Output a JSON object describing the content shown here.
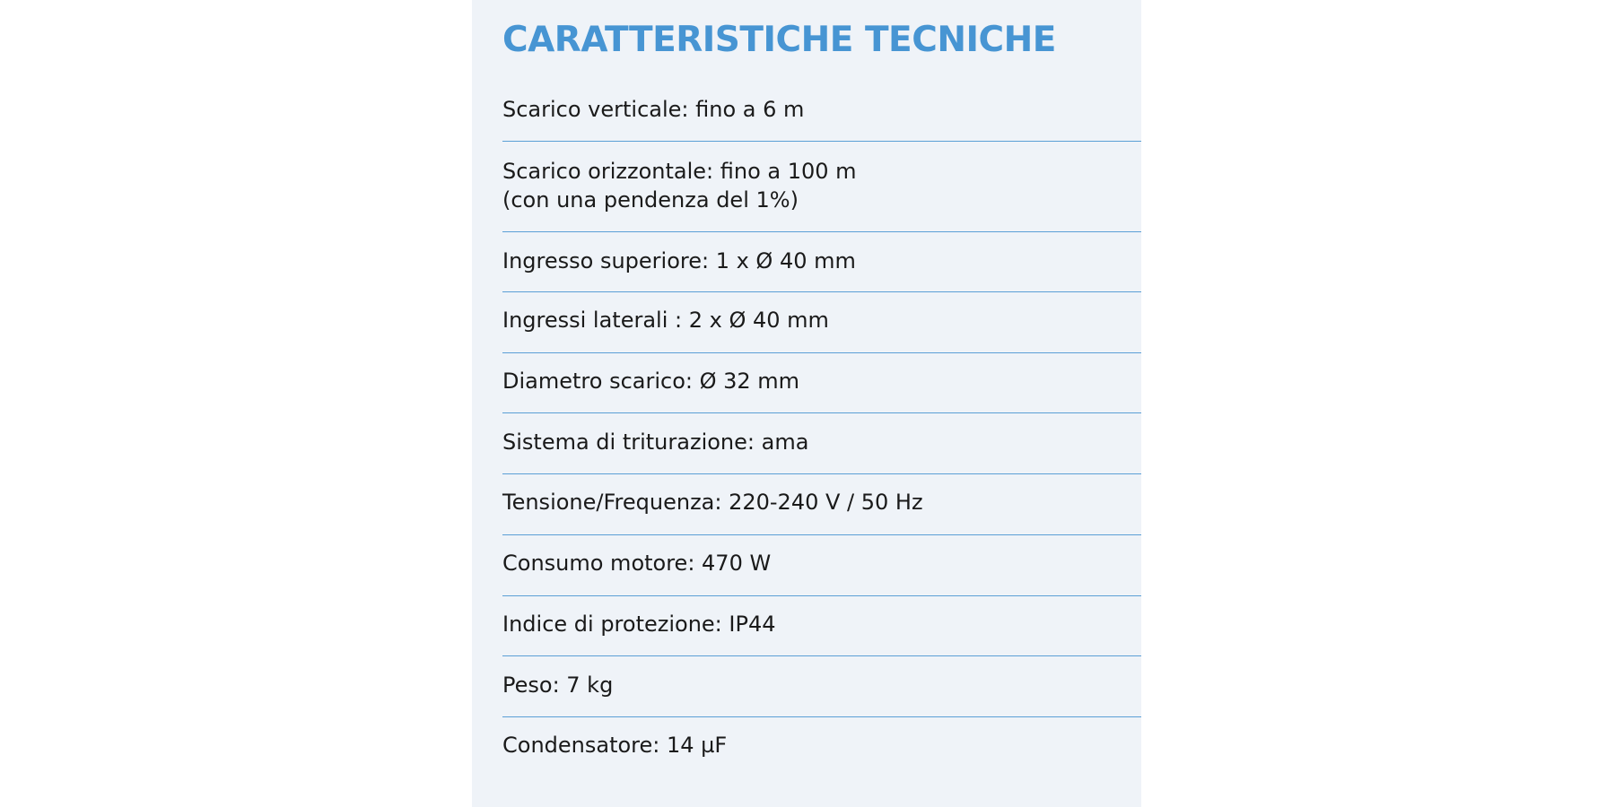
{
  "title": "CARATTERISTICHE TECNICHE",
  "specs": [
    {
      "lines": [
        "Scarico verticale: fino a 6 m"
      ]
    },
    {
      "lines": [
        "Scarico orizzontale: fino a 100 m",
        "(con una pendenza del 1%)"
      ]
    },
    {
      "lines": [
        "Ingresso superiore: 1 x Ø 40 mm"
      ]
    },
    {
      "lines": [
        "Ingressi laterali : 2 x Ø 40 mm"
      ]
    },
    {
      "lines": [
        "Diametro scarico: Ø 32 mm"
      ]
    },
    {
      "lines": [
        "Sistema di triturazione: ama"
      ]
    },
    {
      "lines": [
        "Tensione/Frequenza: 220-240 V / 50 Hz"
      ]
    },
    {
      "lines": [
        "Consumo motore: 470 W"
      ]
    },
    {
      "lines": [
        "Indice di protezione: IP44"
      ]
    },
    {
      "lines": [
        "Peso: 7 kg"
      ]
    },
    {
      "lines": [
        "Condensatore: 14 µF"
      ]
    }
  ],
  "colors": {
    "title": "#4795d3",
    "divider": "#5b9fd6",
    "panel": "#eff3f8"
  }
}
